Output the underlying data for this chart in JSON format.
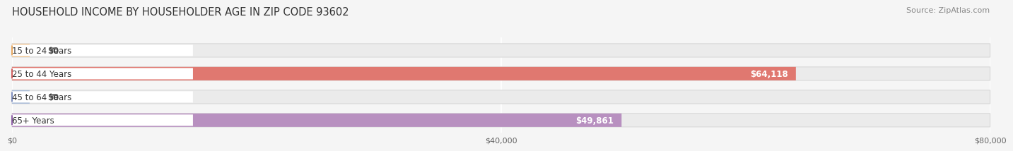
{
  "title": "HOUSEHOLD INCOME BY HOUSEHOLDER AGE IN ZIP CODE 93602",
  "source": "Source: ZipAtlas.com",
  "categories": [
    "15 to 24 Years",
    "25 to 44 Years",
    "45 to 64 Years",
    "65+ Years"
  ],
  "values": [
    0,
    64118,
    0,
    49861
  ],
  "bar_colors": [
    "#f0c898",
    "#e07870",
    "#aabcd8",
    "#b890c0"
  ],
  "label_pill_colors": [
    "#e8a860",
    "#d06060",
    "#8090c0",
    "#9060a8"
  ],
  "value_labels": [
    "$0",
    "$64,118",
    "$0",
    "$49,861"
  ],
  "xmax": 80000,
  "xticks": [
    0,
    40000,
    80000
  ],
  "xticklabels": [
    "$0",
    "$40,000",
    "$80,000"
  ],
  "background_color": "#f5f5f5",
  "bar_bg_color": "#ebebeb",
  "title_fontsize": 10.5,
  "source_fontsize": 8,
  "label_fontsize": 8.5,
  "value_fontsize": 8.5
}
